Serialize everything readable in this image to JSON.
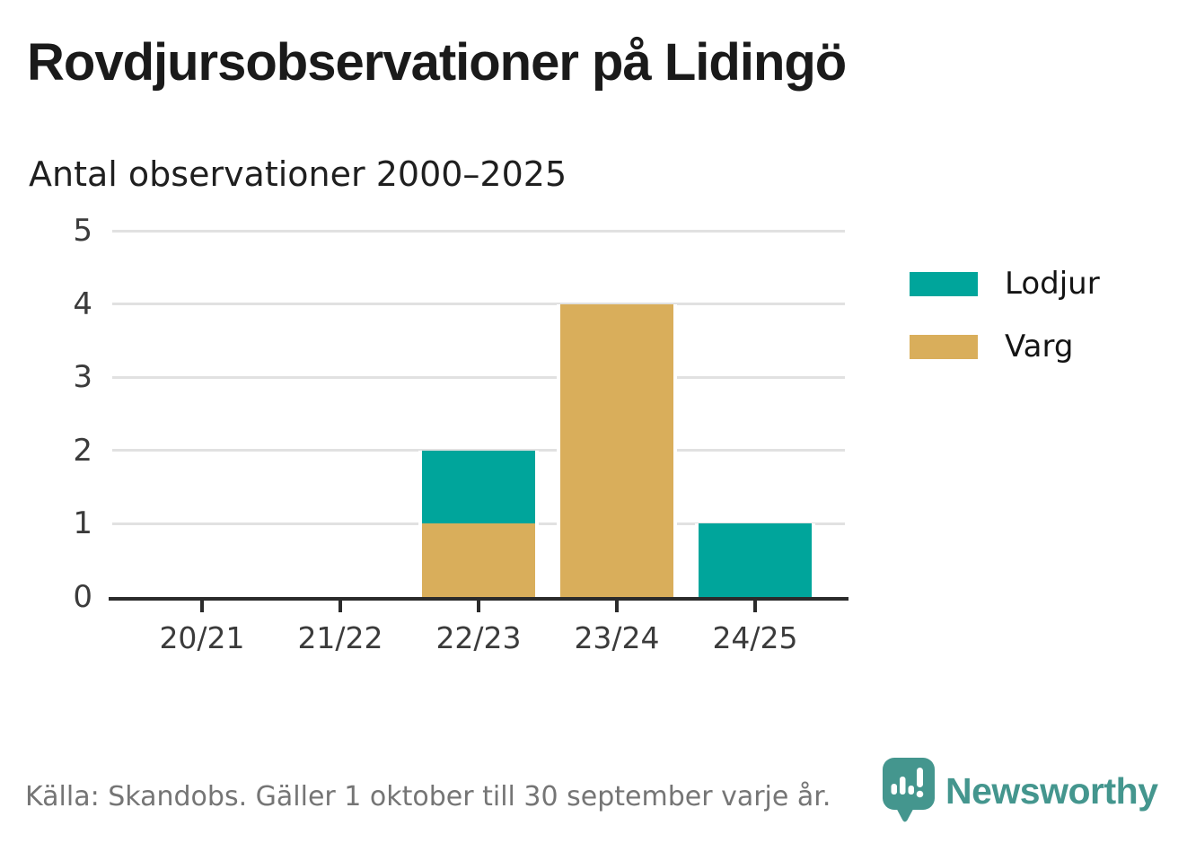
{
  "header": {
    "title": "Rovdjursobservationer på Lidingö",
    "subtitle": "Antal observationer 2000–2025"
  },
  "chart_data": {
    "type": "bar",
    "stacked": true,
    "title": "Rovdjursobservationer på Lidingö",
    "subtitle": "Antal observationer 2000–2025",
    "categories": [
      "20/21",
      "21/22",
      "22/23",
      "23/24",
      "24/25"
    ],
    "series": [
      {
        "name": "Lodjur",
        "color": "#00a59b",
        "values": [
          0,
          0,
          1,
          0,
          1
        ]
      },
      {
        "name": "Varg",
        "color": "#d9ae5b",
        "values": [
          0,
          0,
          1,
          4,
          0
        ]
      }
    ],
    "stack_bottom_to_top": [
      "Varg",
      "Lodjur"
    ],
    "totals": [
      0,
      0,
      2,
      4,
      1
    ],
    "ylim": [
      0,
      5
    ],
    "yticks": [
      0,
      1,
      2,
      3,
      4,
      5
    ],
    "grid": true,
    "legend_position": "right"
  },
  "legend": {
    "items": [
      {
        "label": "Lodjur",
        "color": "#00a59b"
      },
      {
        "label": "Varg",
        "color": "#d9ae5b"
      }
    ]
  },
  "footer": {
    "source": "Källa: Skandobs. Gäller 1 oktober till 30 september varje år.",
    "brand": "Newsworthy"
  },
  "colors": {
    "lodjur": "#00a59b",
    "varg": "#d9ae5b",
    "grid": "#e1e1e1",
    "axis": "#2b2b2b",
    "text": "#1a1a1a",
    "muted_text": "#757575",
    "brand_teal": "#44968e"
  }
}
